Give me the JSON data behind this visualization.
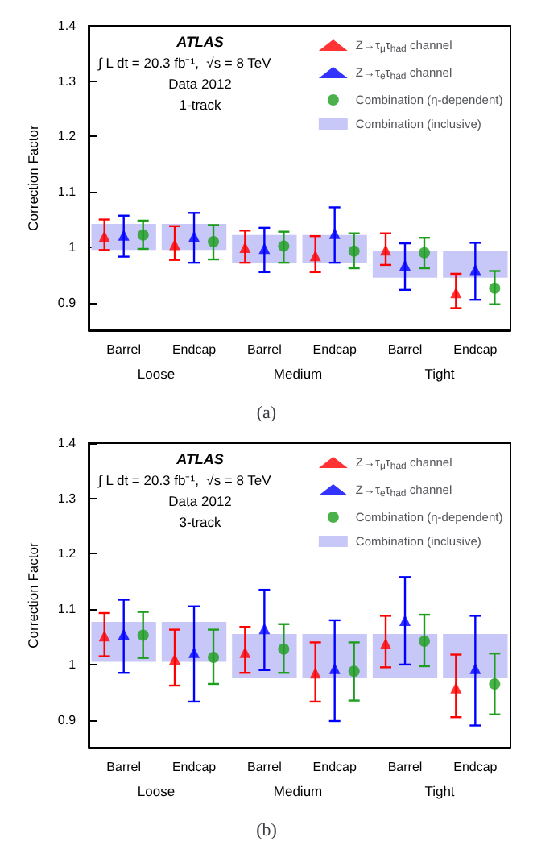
{
  "chart_data": [
    {
      "type": "scatter",
      "title": "(a)",
      "ylabel": "Correction Factor",
      "categories": [
        "Barrel",
        "Endcap",
        "Barrel",
        "Endcap",
        "Barrel",
        "Endcap"
      ],
      "ylim": [
        0.85,
        1.4
      ],
      "yticks": [
        0.9,
        1,
        1.1,
        1.2,
        1.3,
        1.4
      ],
      "legend": "top right",
      "annotations": [
        "ATLAS",
        "∫ L dt = 20.3 fb⁻¹,  √s = 8 TeV",
        "Data 2012",
        "1-track",
        "Loose",
        "Medium",
        "Tight"
      ],
      "series": [
        {
          "name": "Z→τ$_{μ}$τ$_{had}$ channel",
          "marker": "triangle",
          "color": "#ff0000",
          "values": [
            1.02,
            1.005,
            1.0,
            0.985,
            0.995,
            0.918
          ],
          "errors": [
            [
              0.995,
              1.05
            ],
            [
              0.977,
              1.038
            ],
            [
              0.972,
              1.03
            ],
            [
              0.955,
              1.02
            ],
            [
              0.968,
              1.025
            ],
            [
              0.89,
              0.952
            ]
          ]
        },
        {
          "name": "Z→τ$_{e}$τ$_{had}$ channel",
          "marker": "triangle",
          "color": "#0000ff",
          "values": [
            1.022,
            1.02,
            0.998,
            1.025,
            0.968,
            0.96
          ],
          "errors": [
            [
              0.983,
              1.057
            ],
            [
              0.972,
              1.062
            ],
            [
              0.955,
              1.035
            ],
            [
              0.972,
              1.072
            ],
            [
              0.923,
              1.007
            ],
            [
              0.905,
              1.008
            ]
          ]
        },
        {
          "name": "Combination (η-dependent)",
          "marker": "circle",
          "color": "#1e9e1e",
          "values": [
            1.022,
            1.01,
            1.002,
            0.993,
            0.99,
            0.926
          ],
          "errors": [
            [
              0.997,
              1.048
            ],
            [
              0.978,
              1.04
            ],
            [
              0.972,
              1.028
            ],
            [
              0.962,
              1.025
            ],
            [
              0.962,
              1.017
            ],
            [
              0.897,
              0.957
            ]
          ]
        },
        {
          "name": "Combination (inclusive)",
          "type": "bar",
          "color": "#c8c8f8",
          "base": [
            0.995,
            0.995,
            0.972,
            0.972,
            0.945,
            0.945
          ],
          "values": [
            0.047,
            0.047,
            0.05,
            0.05,
            0.049,
            0.049
          ]
        }
      ]
    },
    {
      "type": "scatter",
      "title": "(b)",
      "ylabel": "Correction Factor",
      "categories": [
        "Barrel",
        "Endcap",
        "Barrel",
        "Endcap",
        "Barrel",
        "Endcap"
      ],
      "ylim": [
        0.85,
        1.4
      ],
      "yticks": [
        0.9,
        1,
        1.1,
        1.2,
        1.3,
        1.4
      ],
      "legend": "top right",
      "annotations": [
        "ATLAS",
        "∫ L dt = 20.3 fb⁻¹,  √s = 8 TeV",
        "Data 2012",
        "3-track",
        "Loose",
        "Medium",
        "Tight"
      ],
      "series": [
        {
          "name": "Z→τ$_{μ}$τ$_{had}$ channel",
          "marker": "triangle",
          "color": "#ff0000",
          "values": [
            1.052,
            1.01,
            1.022,
            0.985,
            1.038,
            0.958
          ],
          "errors": [
            [
              1.015,
              1.093
            ],
            [
              0.962,
              1.063
            ],
            [
              0.985,
              1.068
            ],
            [
              0.933,
              1.04
            ],
            [
              0.995,
              1.088
            ],
            [
              0.905,
              1.018
            ]
          ]
        },
        {
          "name": "Z→τ$_{e}$τ$_{had}$ channel",
          "marker": "triangle",
          "color": "#0000ff",
          "values": [
            1.055,
            1.022,
            1.065,
            0.993,
            1.08,
            0.993
          ],
          "errors": [
            [
              0.985,
              1.117
            ],
            [
              0.933,
              1.105
            ],
            [
              0.99,
              1.135
            ],
            [
              0.898,
              1.08
            ],
            [
              1.0,
              1.158
            ],
            [
              0.89,
              1.088
            ]
          ]
        },
        {
          "name": "Combination (η-dependent)",
          "marker": "circle",
          "color": "#1e9e1e",
          "values": [
            1.053,
            1.013,
            1.028,
            0.988,
            1.042,
            0.965
          ],
          "errors": [
            [
              1.012,
              1.095
            ],
            [
              0.965,
              1.063
            ],
            [
              0.985,
              1.073
            ],
            [
              0.935,
              1.04
            ],
            [
              0.997,
              1.09
            ],
            [
              0.91,
              1.02
            ]
          ]
        },
        {
          "name": "Combination (inclusive)",
          "type": "bar",
          "color": "#c8c8f8",
          "base": [
            1.005,
            1.005,
            0.975,
            0.975,
            0.975,
            0.975
          ],
          "values": [
            0.072,
            0.072,
            0.08,
            0.08,
            0.08,
            0.08
          ]
        }
      ]
    }
  ]
}
